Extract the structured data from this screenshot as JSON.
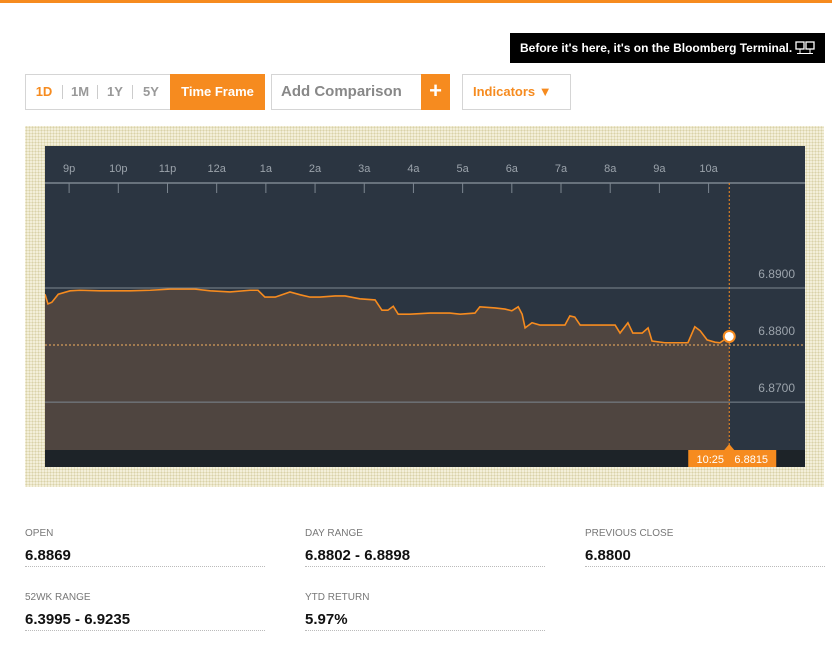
{
  "banner": "Before it's here, it's on the Bloomberg Terminal.",
  "toolbar": {
    "ranges": [
      "1D",
      "1M",
      "1Y",
      "5Y"
    ],
    "time_frame": "Time Frame",
    "comparison": "Add Comparison",
    "plus": "+",
    "indicators": "Indicators ▼"
  },
  "chart_data": {
    "type": "area",
    "x": [
      -0.49,
      -0.43,
      -0.35,
      -0.22,
      0.02,
      0.22,
      0.63,
      1.24,
      1.65,
      2.05,
      2.56,
      2.87,
      3.27,
      3.68,
      3.84,
      3.98,
      4.19,
      4.49,
      4.7,
      4.9,
      5.1,
      5.41,
      5.61,
      5.91,
      6.22,
      6.36,
      6.48,
      6.59,
      6.69,
      6.93,
      7.34,
      7.74,
      7.95,
      8.25,
      8.35,
      8.66,
      8.86,
      9.0,
      9.13,
      9.21,
      9.27,
      9.41,
      9.57,
      9.78,
      10.08,
      10.18,
      10.28,
      10.39,
      10.69,
      11.1,
      11.2,
      11.36,
      11.46,
      11.65,
      11.77,
      11.85,
      12.11,
      12.58,
      12.72,
      12.83,
      12.97,
      13.13,
      13.23,
      13.42
    ],
    "series": [
      {
        "color": "#f68b1f",
        "values": [
          6.8889,
          6.8872,
          6.8875,
          6.8889,
          6.8895,
          6.8896,
          6.8895,
          6.8895,
          6.8896,
          6.8898,
          6.8898,
          6.8895,
          6.8893,
          6.8896,
          6.8896,
          6.8884,
          6.8884,
          6.8893,
          6.8888,
          6.8884,
          6.8884,
          6.8886,
          6.8886,
          6.8881,
          6.8879,
          6.8861,
          6.8861,
          6.8868,
          6.8854,
          6.8854,
          6.8856,
          6.8856,
          6.8854,
          6.8856,
          6.8867,
          6.8865,
          6.8863,
          6.886,
          6.8867,
          6.8854,
          6.883,
          6.8839,
          6.8835,
          6.8835,
          6.8835,
          6.8851,
          6.8849,
          6.8835,
          6.8835,
          6.8835,
          6.8821,
          6.8839,
          6.8821,
          6.8821,
          6.883,
          6.8807,
          6.8804,
          6.8804,
          6.8832,
          6.8825,
          6.8809,
          6.8805,
          6.8804,
          6.8815
        ]
      }
    ],
    "xlim": [
      -0.49,
      14.96
    ],
    "xticks": [
      {
        "value": 0,
        "label": "9p"
      },
      {
        "value": 1,
        "label": "10p"
      },
      {
        "value": 2,
        "label": "11p"
      },
      {
        "value": 3,
        "label": "12a"
      },
      {
        "value": 4,
        "label": "1a"
      },
      {
        "value": 5,
        "label": "2a"
      },
      {
        "value": 6,
        "label": "3a"
      },
      {
        "value": 7,
        "label": "4a"
      },
      {
        "value": 8,
        "label": "5a"
      },
      {
        "value": 9,
        "label": "6a"
      },
      {
        "value": 10,
        "label": "7a"
      },
      {
        "value": 11,
        "label": "8a"
      },
      {
        "value": 12,
        "label": "9a"
      },
      {
        "value": 13,
        "label": "10a"
      }
    ],
    "ylim": [
      6.8616,
      6.9084
    ],
    "yticks": [
      {
        "value": 6.87,
        "label": "6.8700"
      },
      {
        "value": 6.88,
        "label": "6.8800",
        "style": "dotted"
      },
      {
        "value": 6.89,
        "label": "6.8900"
      }
    ],
    "cursor": {
      "time": "10:25",
      "value": 6.8815
    }
  },
  "stats": [
    {
      "label": "OPEN",
      "value": "6.8869"
    },
    {
      "label": "DAY RANGE",
      "value": "6.8802 - 6.8898"
    },
    {
      "label": "PREVIOUS CLOSE",
      "value": "6.8800"
    },
    {
      "label": "52WK RANGE",
      "value": "6.3995 - 6.9235"
    },
    {
      "label": "YTD RETURN",
      "value": "5.97%"
    }
  ]
}
